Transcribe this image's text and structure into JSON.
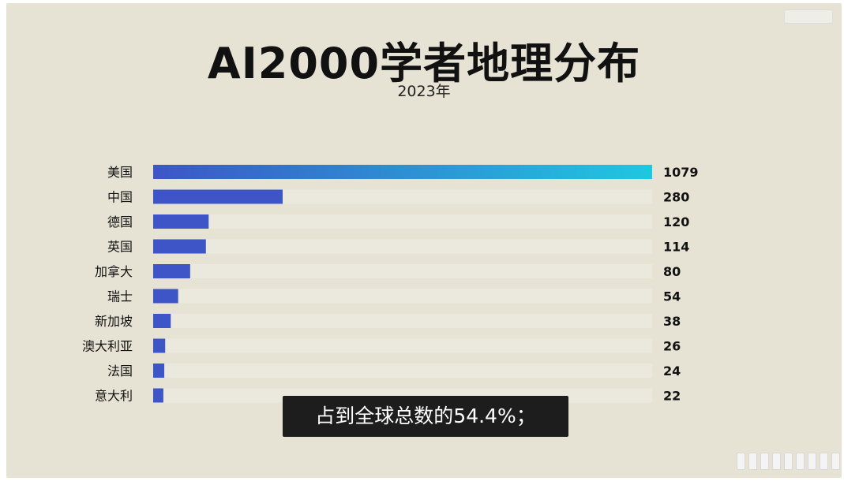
{
  "title": "AI2000学者地理分布",
  "subtitle": "2023年",
  "caption": "占到全球总数的54.4%；",
  "colors": {
    "background": "#e6e3d4",
    "bar_start": "#3d55c7",
    "bar_end": "#1ec8e0",
    "track": "#ebe9dd",
    "text": "#111111"
  },
  "chart_data": {
    "type": "bar",
    "orientation": "horizontal",
    "title": "AI2000学者地理分布",
    "subtitle": "2023年",
    "categories": [
      "美国",
      "中国",
      "德国",
      "英国",
      "加拿大",
      "瑞士",
      "新加坡",
      "澳大利亚",
      "法国",
      "意大利"
    ],
    "values": [
      1079,
      280,
      120,
      114,
      80,
      54,
      38,
      26,
      24,
      22
    ],
    "xlim": [
      0,
      1079
    ],
    "grid": false,
    "legend": "none"
  }
}
